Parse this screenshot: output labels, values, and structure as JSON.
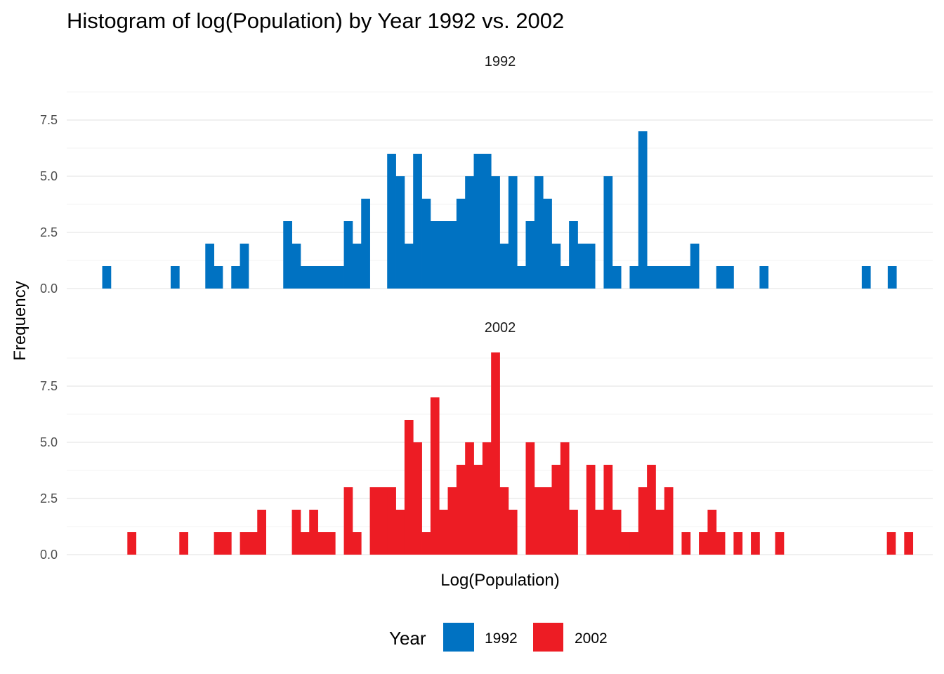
{
  "chart_data": {
    "type": "bar",
    "title": "Histogram of log(Population) by Year 1992 vs. 2002",
    "xlabel": "Log(Population)",
    "ylabel": "Frequency",
    "ylim": [
      0,
      9
    ],
    "y_ticks": [
      "0.0",
      "2.5",
      "5.0",
      "7.5"
    ],
    "y_tick_values": [
      0,
      2.5,
      5,
      7.5
    ],
    "x_range": [
      0,
      100
    ],
    "grid": true,
    "legend": {
      "title": "Year",
      "position": "bottom",
      "entries": [
        {
          "label": "1992",
          "color": "#0072C2"
        },
        {
          "label": "2002",
          "color": "#ED1C24"
        }
      ]
    },
    "panels": [
      {
        "label": "1992",
        "color": "#0072C2",
        "bins": [
          {
            "x": 4.6,
            "y": 1
          },
          {
            "x": 12.5,
            "y": 1
          },
          {
            "x": 16.5,
            "y": 2
          },
          {
            "x": 17.5,
            "y": 1
          },
          {
            "x": 19.5,
            "y": 1
          },
          {
            "x": 20.5,
            "y": 2
          },
          {
            "x": 25.5,
            "y": 3
          },
          {
            "x": 26.5,
            "y": 2
          },
          {
            "x": 27.5,
            "y": 1
          },
          {
            "x": 28.5,
            "y": 1
          },
          {
            "x": 29.5,
            "y": 1
          },
          {
            "x": 30.5,
            "y": 1
          },
          {
            "x": 31.5,
            "y": 1
          },
          {
            "x": 32.5,
            "y": 3
          },
          {
            "x": 33.5,
            "y": 2
          },
          {
            "x": 34.5,
            "y": 4
          },
          {
            "x": 37.5,
            "y": 6
          },
          {
            "x": 38.5,
            "y": 5
          },
          {
            "x": 39.5,
            "y": 2
          },
          {
            "x": 40.5,
            "y": 6
          },
          {
            "x": 41.5,
            "y": 4
          },
          {
            "x": 42.5,
            "y": 3
          },
          {
            "x": 43.5,
            "y": 3
          },
          {
            "x": 44.5,
            "y": 3
          },
          {
            "x": 45.5,
            "y": 4
          },
          {
            "x": 46.5,
            "y": 5
          },
          {
            "x": 47.5,
            "y": 6
          },
          {
            "x": 48.5,
            "y": 6
          },
          {
            "x": 49.5,
            "y": 5
          },
          {
            "x": 50.5,
            "y": 2
          },
          {
            "x": 51.5,
            "y": 5
          },
          {
            "x": 52.5,
            "y": 1
          },
          {
            "x": 53.5,
            "y": 3
          },
          {
            "x": 54.5,
            "y": 5
          },
          {
            "x": 55.5,
            "y": 4
          },
          {
            "x": 56.5,
            "y": 2
          },
          {
            "x": 57.5,
            "y": 1
          },
          {
            "x": 58.5,
            "y": 3
          },
          {
            "x": 59.5,
            "y": 2
          },
          {
            "x": 60.5,
            "y": 2
          },
          {
            "x": 62.5,
            "y": 5
          },
          {
            "x": 63.5,
            "y": 1
          },
          {
            "x": 65.5,
            "y": 1
          },
          {
            "x": 66.5,
            "y": 7
          },
          {
            "x": 67.5,
            "y": 1
          },
          {
            "x": 68.5,
            "y": 1
          },
          {
            "x": 69.5,
            "y": 1
          },
          {
            "x": 70.5,
            "y": 1
          },
          {
            "x": 71.5,
            "y": 1
          },
          {
            "x": 72.5,
            "y": 2
          },
          {
            "x": 75.5,
            "y": 1
          },
          {
            "x": 76.5,
            "y": 1
          },
          {
            "x": 80.5,
            "y": 1
          },
          {
            "x": 92.3,
            "y": 1
          },
          {
            "x": 95.3,
            "y": 1
          }
        ]
      },
      {
        "label": "2002",
        "color": "#ED1C24",
        "bins": [
          {
            "x": 7.5,
            "y": 1
          },
          {
            "x": 13.5,
            "y": 1
          },
          {
            "x": 17.5,
            "y": 1
          },
          {
            "x": 18.5,
            "y": 1
          },
          {
            "x": 20.5,
            "y": 1
          },
          {
            "x": 21.5,
            "y": 1
          },
          {
            "x": 22.5,
            "y": 2
          },
          {
            "x": 26.5,
            "y": 2
          },
          {
            "x": 27.5,
            "y": 1
          },
          {
            "x": 28.5,
            "y": 2
          },
          {
            "x": 29.5,
            "y": 1
          },
          {
            "x": 30.5,
            "y": 1
          },
          {
            "x": 32.5,
            "y": 3
          },
          {
            "x": 33.5,
            "y": 1
          },
          {
            "x": 35.5,
            "y": 3
          },
          {
            "x": 36.5,
            "y": 3
          },
          {
            "x": 37.5,
            "y": 3
          },
          {
            "x": 38.5,
            "y": 2
          },
          {
            "x": 39.5,
            "y": 6
          },
          {
            "x": 40.5,
            "y": 5
          },
          {
            "x": 41.5,
            "y": 1
          },
          {
            "x": 42.5,
            "y": 7
          },
          {
            "x": 43.5,
            "y": 2
          },
          {
            "x": 44.5,
            "y": 3
          },
          {
            "x": 45.5,
            "y": 4
          },
          {
            "x": 46.5,
            "y": 5
          },
          {
            "x": 47.5,
            "y": 4
          },
          {
            "x": 48.5,
            "y": 5
          },
          {
            "x": 49.5,
            "y": 9
          },
          {
            "x": 50.5,
            "y": 3
          },
          {
            "x": 51.5,
            "y": 2
          },
          {
            "x": 53.5,
            "y": 5
          },
          {
            "x": 54.5,
            "y": 3
          },
          {
            "x": 55.5,
            "y": 3
          },
          {
            "x": 56.5,
            "y": 4
          },
          {
            "x": 57.5,
            "y": 5
          },
          {
            "x": 58.5,
            "y": 2
          },
          {
            "x": 60.5,
            "y": 4
          },
          {
            "x": 61.5,
            "y": 2
          },
          {
            "x": 62.5,
            "y": 4
          },
          {
            "x": 63.5,
            "y": 2
          },
          {
            "x": 64.5,
            "y": 1
          },
          {
            "x": 65.5,
            "y": 1
          },
          {
            "x": 66.5,
            "y": 3
          },
          {
            "x": 67.5,
            "y": 4
          },
          {
            "x": 68.5,
            "y": 2
          },
          {
            "x": 69.5,
            "y": 3
          },
          {
            "x": 71.5,
            "y": 1
          },
          {
            "x": 73.5,
            "y": 1
          },
          {
            "x": 74.5,
            "y": 2
          },
          {
            "x": 75.5,
            "y": 1
          },
          {
            "x": 77.5,
            "y": 1
          },
          {
            "x": 79.5,
            "y": 1
          },
          {
            "x": 82.3,
            "y": 1
          },
          {
            "x": 95.2,
            "y": 1
          },
          {
            "x": 97.2,
            "y": 1
          }
        ]
      }
    ]
  }
}
